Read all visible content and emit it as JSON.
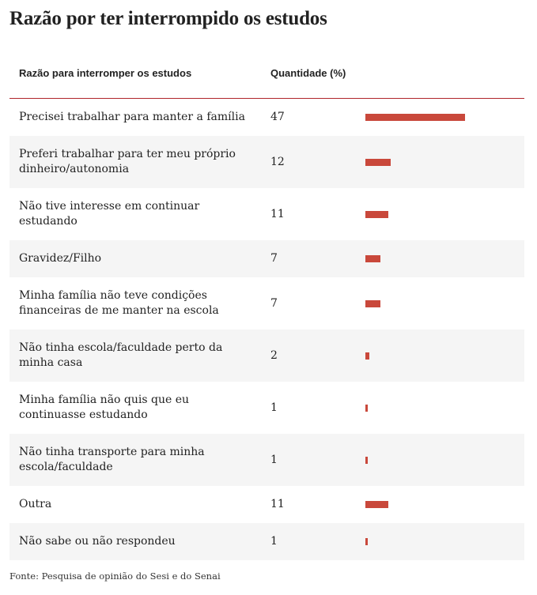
{
  "header": {
    "title": "Razão por ter interrompido os estudos"
  },
  "table": {
    "columns": [
      "Razão para interromper os estudos",
      "Quantidade (%)"
    ],
    "rows": [
      {
        "label": [
          "Precisei trabalhar para manter a família"
        ],
        "value": 47
      },
      {
        "label": [
          "Preferi trabalhar para ter meu próprio",
          "dinheiro/autonomia"
        ],
        "value": 12
      },
      {
        "label": [
          "Não tive interesse em continuar",
          "estudando"
        ],
        "value": 11
      },
      {
        "label": [
          "Gravidez/Filho"
        ],
        "value": 7
      },
      {
        "label": [
          "Minha família não teve condições",
          "financeiras de me manter na escola"
        ],
        "value": 7
      },
      {
        "label": [
          "Não tinha escola/faculdade perto da",
          "minha casa"
        ],
        "value": 2
      },
      {
        "label": [
          "Minha família não quis que eu",
          "continuasse estudando"
        ],
        "value": 1
      },
      {
        "label": [
          "Não tinha transporte para minha",
          "escola/faculdade"
        ],
        "value": 1
      },
      {
        "label": [
          "Outra"
        ],
        "value": 11
      },
      {
        "label": [
          "Não sabe ou não respondeu"
        ],
        "value": 1
      }
    ],
    "bar_color": "#c9483b"
  },
  "footer": {
    "source": "Fonte: Pesquisa de opinião do Sesi e do Senai"
  }
}
